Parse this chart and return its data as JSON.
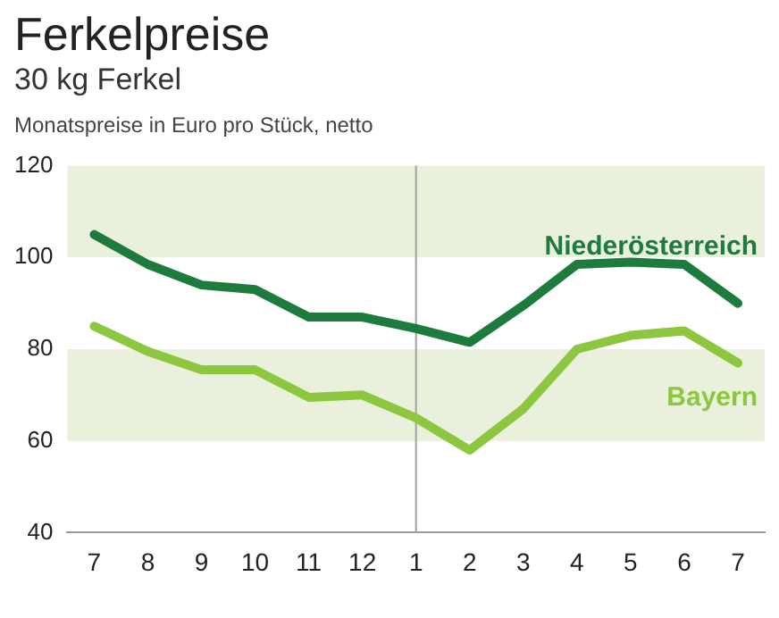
{
  "chart_data": {
    "type": "line",
    "title": "Ferkelpreise",
    "subtitle": "30 kg Ferkel",
    "ylabel": "Monatspreise in Euro pro Stück, netto",
    "categories": [
      "7",
      "8",
      "9",
      "10",
      "11",
      "12",
      "1",
      "2",
      "3",
      "4",
      "5",
      "6",
      "7"
    ],
    "series": [
      {
        "name": "Niederösterreich",
        "color": "#1e7b3e",
        "values": [
          105,
          98.5,
          94,
          93,
          87,
          87,
          84.5,
          81.5,
          89.5,
          98.5,
          99,
          98.5,
          90
        ]
      },
      {
        "name": "Bayern",
        "color": "#8dc63f",
        "values": [
          85,
          79.5,
          75.5,
          75.5,
          69.5,
          70,
          65,
          58,
          67,
          80,
          83,
          84,
          77
        ]
      }
    ],
    "ylim": [
      40,
      120
    ],
    "yticks": [
      40,
      60,
      80,
      100,
      120
    ],
    "grid": false,
    "legend": false,
    "marker": "none",
    "line_style": "solid",
    "bands": [
      {
        "axis": "y",
        "from": 60,
        "to": 80,
        "color": "#e9f1dc"
      },
      {
        "axis": "y",
        "from": 100,
        "to": 120,
        "color": "#e9f1dc"
      }
    ],
    "ref_lines": [
      {
        "axis": "x",
        "value": "1",
        "color": "#a0a0a0"
      }
    ]
  }
}
